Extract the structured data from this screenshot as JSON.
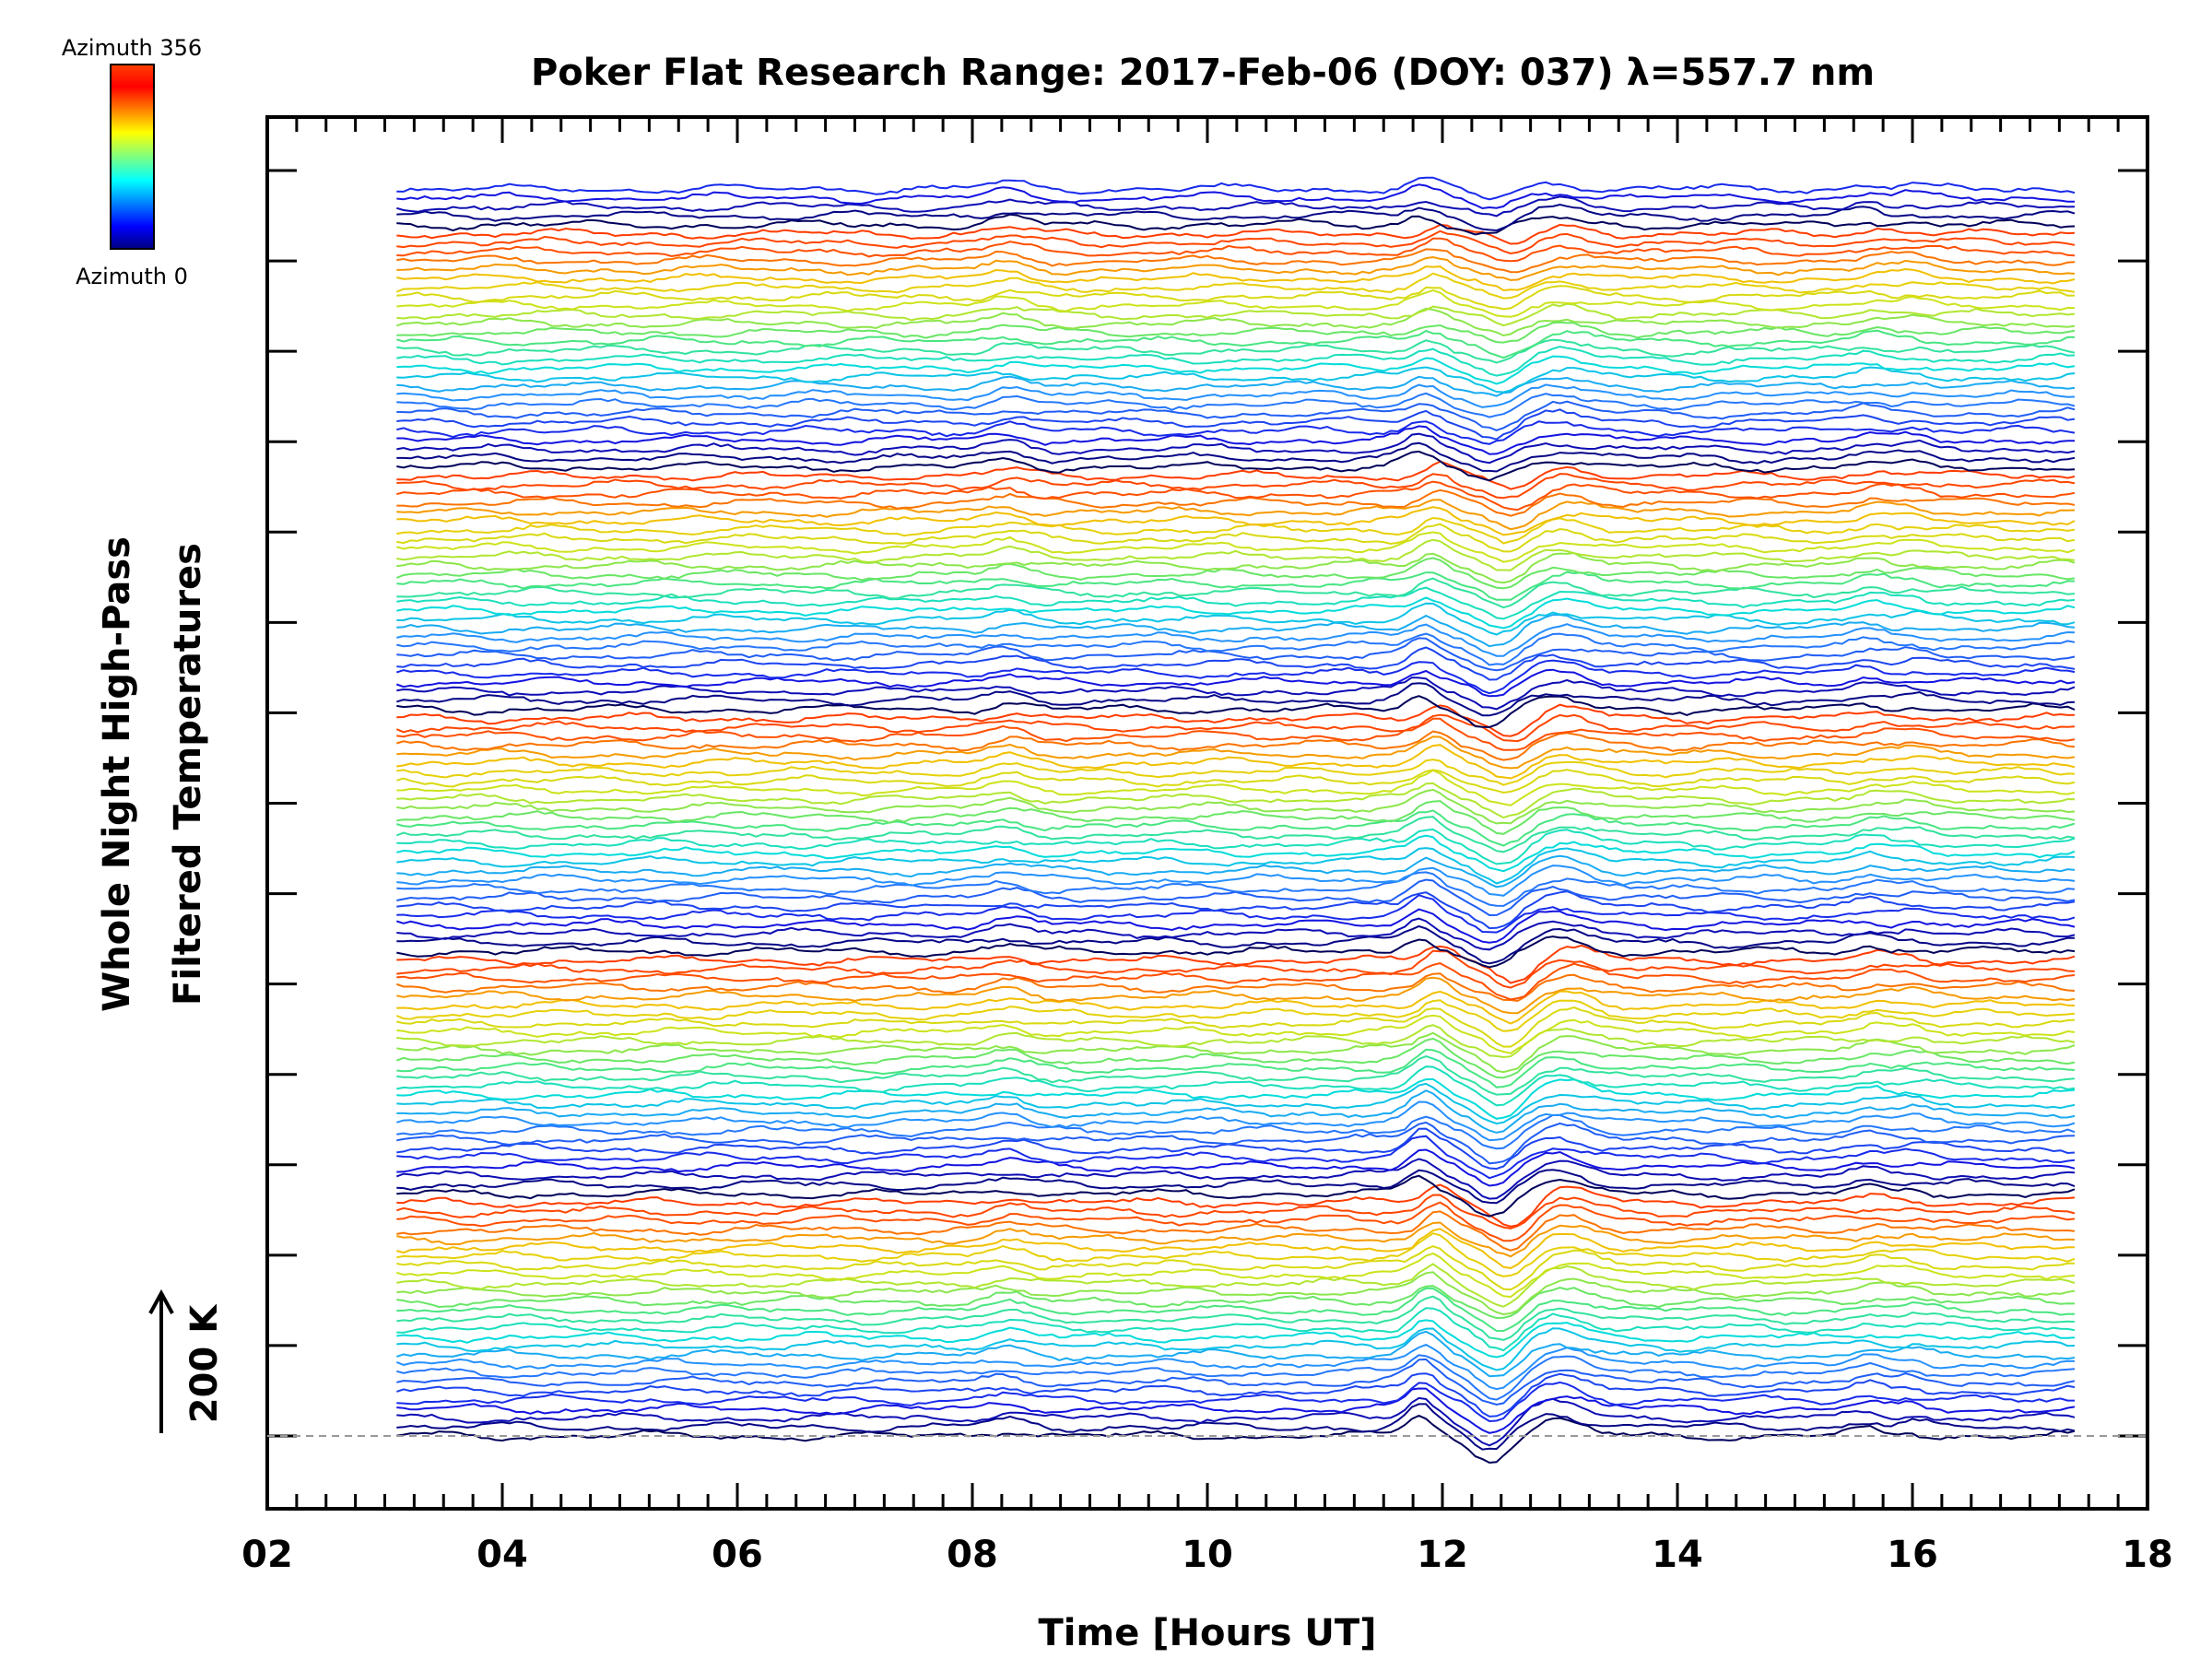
{
  "chart_data": {
    "type": "line",
    "title": "Poker Flat Research Range: 2017-Feb-06 (DOY: 037) λ=557.7 nm",
    "xlabel": "Time [Hours UT]",
    "ylabel_line1": "Whole Night High-Pass",
    "ylabel_line2": "Filtered Temperatures",
    "xlim": [
      2,
      18
    ],
    "x_ticks": [
      "02",
      "04",
      "06",
      "08",
      "10",
      "12",
      "14",
      "16",
      "18"
    ],
    "x_range_of_data": [
      3.1,
      17.4
    ],
    "scale_bar_label": "200 K",
    "colorbar": {
      "top_label": "Azimuth 356",
      "bottom_label": "Azimuth 0",
      "colormap": "rainbow",
      "range": [
        0,
        356
      ]
    },
    "series_count": 140,
    "series_spacing_description": "Stacked high-pass filtered temperature traces, one per azimuth, colored by azimuth and cycling through the rainbow colormap",
    "baseline_style": "dashed gray line at lowest trace",
    "features": [
      {
        "time_ut": 11.8,
        "description": "Sharp wave crest"
      },
      {
        "time_ut": 12.4,
        "description": "Trough"
      },
      {
        "time_ut": 12.9,
        "description": "Secondary crest"
      },
      {
        "time_ut": 15.6,
        "description": "Small crest"
      }
    ]
  }
}
